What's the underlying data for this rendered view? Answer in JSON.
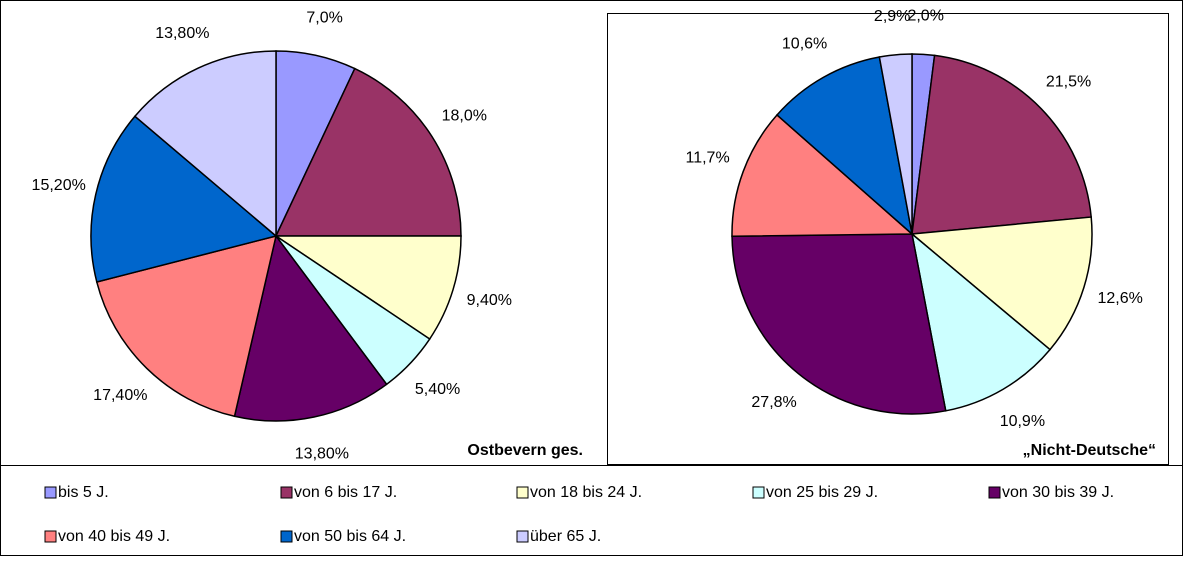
{
  "chart_data": [
    {
      "type": "pie",
      "title": "Ostbevern ges.",
      "categories": [
        "bis 5 J.",
        "von 6 bis 17 J.",
        "von 18 bis 24 J.",
        "von 25 bis 29 J.",
        "von 30 bis 39 J.",
        "von 40 bis 49 J.",
        "von 50 bis 64 J.",
        "über 65 J."
      ],
      "values": [
        7.0,
        18.0,
        9.4,
        5.4,
        13.8,
        17.4,
        15.2,
        13.8
      ],
      "value_labels": [
        "7,0%",
        "18,0%",
        "9,40%",
        "5,40%",
        "13,80%",
        "17,40%",
        "15,20%",
        "13,80%"
      ],
      "colors": [
        "#9999ff",
        "#993366",
        "#ffffcc",
        "#ccffff",
        "#660066",
        "#ff8080",
        "#0066cc",
        "#ccccff"
      ]
    },
    {
      "type": "pie",
      "title": "„Nicht-Deutsche“",
      "categories": [
        "bis 5 J.",
        "von 6 bis 17 J.",
        "von 18 bis 24 J.",
        "von 25 bis 29 J.",
        "von 30 bis 39 J.",
        "von 40 bis 49 J.",
        "von 50 bis 64 J.",
        "über 65 J."
      ],
      "values": [
        2.0,
        21.5,
        12.6,
        10.9,
        27.8,
        11.7,
        10.6,
        2.9
      ],
      "value_labels": [
        "2,0%",
        "21,5%",
        "12,6%",
        "10,9%",
        "27,8%",
        "11,7%",
        "10,6%",
        "2,9%"
      ],
      "colors": [
        "#9999ff",
        "#993366",
        "#ffffcc",
        "#ccffff",
        "#660066",
        "#ff8080",
        "#0066cc",
        "#ccccff"
      ]
    }
  ]
}
